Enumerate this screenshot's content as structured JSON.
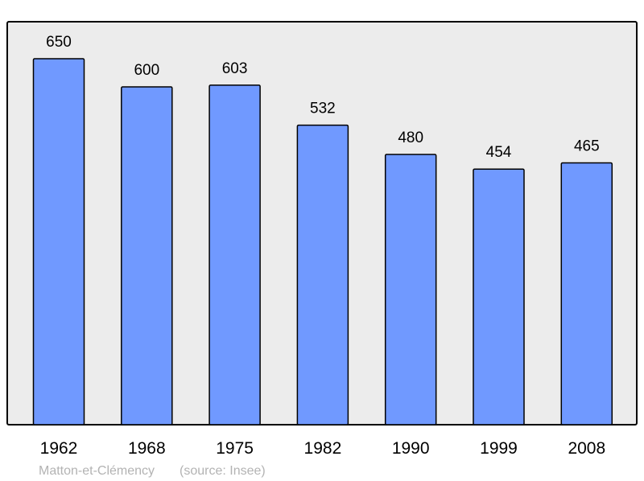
{
  "chart_data": {
    "type": "bar",
    "categories": [
      "1962",
      "1968",
      "1975",
      "1982",
      "1990",
      "1999",
      "2008"
    ],
    "values": [
      650,
      600,
      603,
      532,
      480,
      454,
      465
    ],
    "title": "",
    "xlabel": "",
    "ylabel": "",
    "ylim": [
      0,
      715
    ],
    "grid": false,
    "legend": "none",
    "bar_color": "#7099ff",
    "plot_background": "#ececec",
    "data_labels": true
  },
  "footer": {
    "place": "Matton-et-Clémency",
    "source": "(source: Insee)"
  }
}
